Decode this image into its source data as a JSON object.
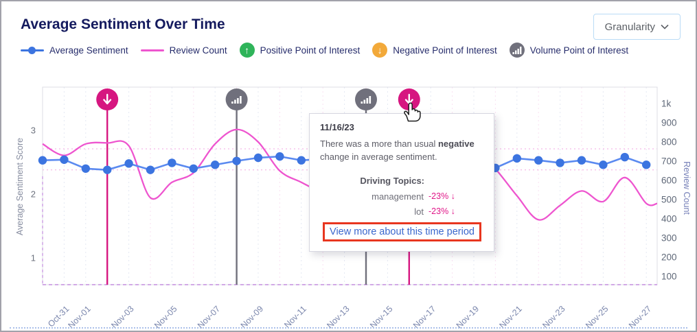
{
  "header": {
    "title": "Average Sentiment Over Time",
    "granularity_label": "Granularity"
  },
  "legend": {
    "items": [
      {
        "label": "Average Sentiment",
        "swatch": "blue-line-dot",
        "color": "#3c74e0"
      },
      {
        "label": "Review Count",
        "swatch": "pink-line",
        "color": "#ee55cf"
      },
      {
        "label": "Positive Point of Interest",
        "swatch": "green-circle-up-arrow",
        "color": "#2fb45a",
        "glyph": "↑"
      },
      {
        "label": "Negative Point of Interest",
        "swatch": "amber-circle-down-arrow",
        "color": "#f2a93a",
        "glyph": "↓"
      },
      {
        "label": "Volume Point of Interest",
        "swatch": "gray-circle-bars",
        "color": "#70707c"
      }
    ]
  },
  "tooltip": {
    "date": "11/16/23",
    "message_prefix": "There was a more than usual ",
    "message_bold": "negative",
    "message_suffix": " change in average sentiment.",
    "topics_label": "Driving Topics:",
    "topics": [
      {
        "name": "management",
        "change": "-23%",
        "arrow": "↓"
      },
      {
        "name": "lot",
        "change": "-23%",
        "arrow": "↓"
      }
    ],
    "button_label": "View more about this time period"
  },
  "chart_data": {
    "type": "line",
    "x": [
      "Oct-30",
      "Oct-31",
      "Nov-01",
      "Nov-02",
      "Nov-03",
      "Nov-04",
      "Nov-05",
      "Nov-06",
      "Nov-07",
      "Nov-08",
      "Nov-09",
      "Nov-10",
      "Nov-11",
      "Nov-12",
      "Nov-13",
      "Nov-14",
      "Nov-15",
      "Nov-16",
      "Nov-17",
      "Nov-18",
      "Nov-19",
      "Nov-20",
      "Nov-21",
      "Nov-22",
      "Nov-23",
      "Nov-24",
      "Nov-25",
      "Nov-26",
      "Nov-27"
    ],
    "x_tick_labels": [
      {
        "label": "Oct-31",
        "day": 1
      },
      {
        "label": "Nov-01",
        "day": 2
      },
      {
        "label": "Nov-03",
        "day": 4
      },
      {
        "label": "Nov-05",
        "day": 6
      },
      {
        "label": "Nov-07",
        "day": 8
      },
      {
        "label": "Nov-09",
        "day": 10
      },
      {
        "label": "Nov-11",
        "day": 12
      },
      {
        "label": "Nov-13",
        "day": 14
      },
      {
        "label": "Nov-15",
        "day": 16
      },
      {
        "label": "Nov-17",
        "day": 18
      },
      {
        "label": "Nov-19",
        "day": 20
      },
      {
        "label": "Nov-21",
        "day": 22
      },
      {
        "label": "Nov-23",
        "day": 24
      },
      {
        "label": "Nov-25",
        "day": 26
      },
      {
        "label": "Nov-27",
        "day": 28
      }
    ],
    "series": [
      {
        "name": "Average Sentiment",
        "axis": "left",
        "color": "#3c74e0",
        "style": "line-with-dots",
        "values": [
          2.53,
          2.54,
          2.4,
          2.38,
          2.48,
          2.38,
          2.49,
          2.4,
          2.46,
          2.52,
          2.57,
          2.59,
          2.53,
          2.55,
          2.57,
          2.52,
          2.46,
          2.42,
          2.4,
          2.41,
          2.42,
          2.41,
          2.56,
          2.53,
          2.49,
          2.53,
          2.46,
          2.58,
          2.46
        ]
      },
      {
        "name": "Review Count",
        "axis": "right",
        "color": "#ee55cf",
        "style": "smooth-line",
        "values": [
          790,
          730,
          790,
          795,
          780,
          510,
          590,
          640,
          790,
          865,
          800,
          650,
          590,
          535,
          500,
          550,
          650,
          720,
          760,
          770,
          765,
          660,
          520,
          395,
          470,
          545,
          490,
          615,
          480
        ]
      }
    ],
    "left_axis": {
      "label": "Average Sentiment Score",
      "ticks": [
        1,
        2,
        3
      ],
      "range": [
        0.55,
        3.7
      ]
    },
    "right_axis": {
      "label": "Review Count",
      "range": [
        55,
        1090
      ],
      "ticks": [
        {
          "value": 100,
          "label": "100"
        },
        {
          "value": 200,
          "label": "200"
        },
        {
          "value": 300,
          "label": "300"
        },
        {
          "value": 400,
          "label": "400"
        },
        {
          "value": 500,
          "label": "500"
        },
        {
          "value": 600,
          "label": "600"
        },
        {
          "value": 700,
          "label": "700"
        },
        {
          "value": 800,
          "label": "800"
        },
        {
          "value": 900,
          "label": "900"
        },
        {
          "value": 1000,
          "label": "1k"
        }
      ]
    },
    "usual_range_band": {
      "low": 2.38,
      "high": 2.71
    },
    "points_of_interest": [
      {
        "date": "Nov-02",
        "day": 3,
        "kind": "negative",
        "color": "#d61680"
      },
      {
        "date": "Nov-08",
        "day": 9,
        "kind": "volume",
        "color": "#70707c"
      },
      {
        "date": "Nov-14",
        "day": 15,
        "kind": "volume",
        "color": "#70707c"
      },
      {
        "date": "Nov-16",
        "day": 17,
        "kind": "negative",
        "color": "#d61680"
      }
    ],
    "grid": "vertical-dotted",
    "legend_position": "top"
  }
}
